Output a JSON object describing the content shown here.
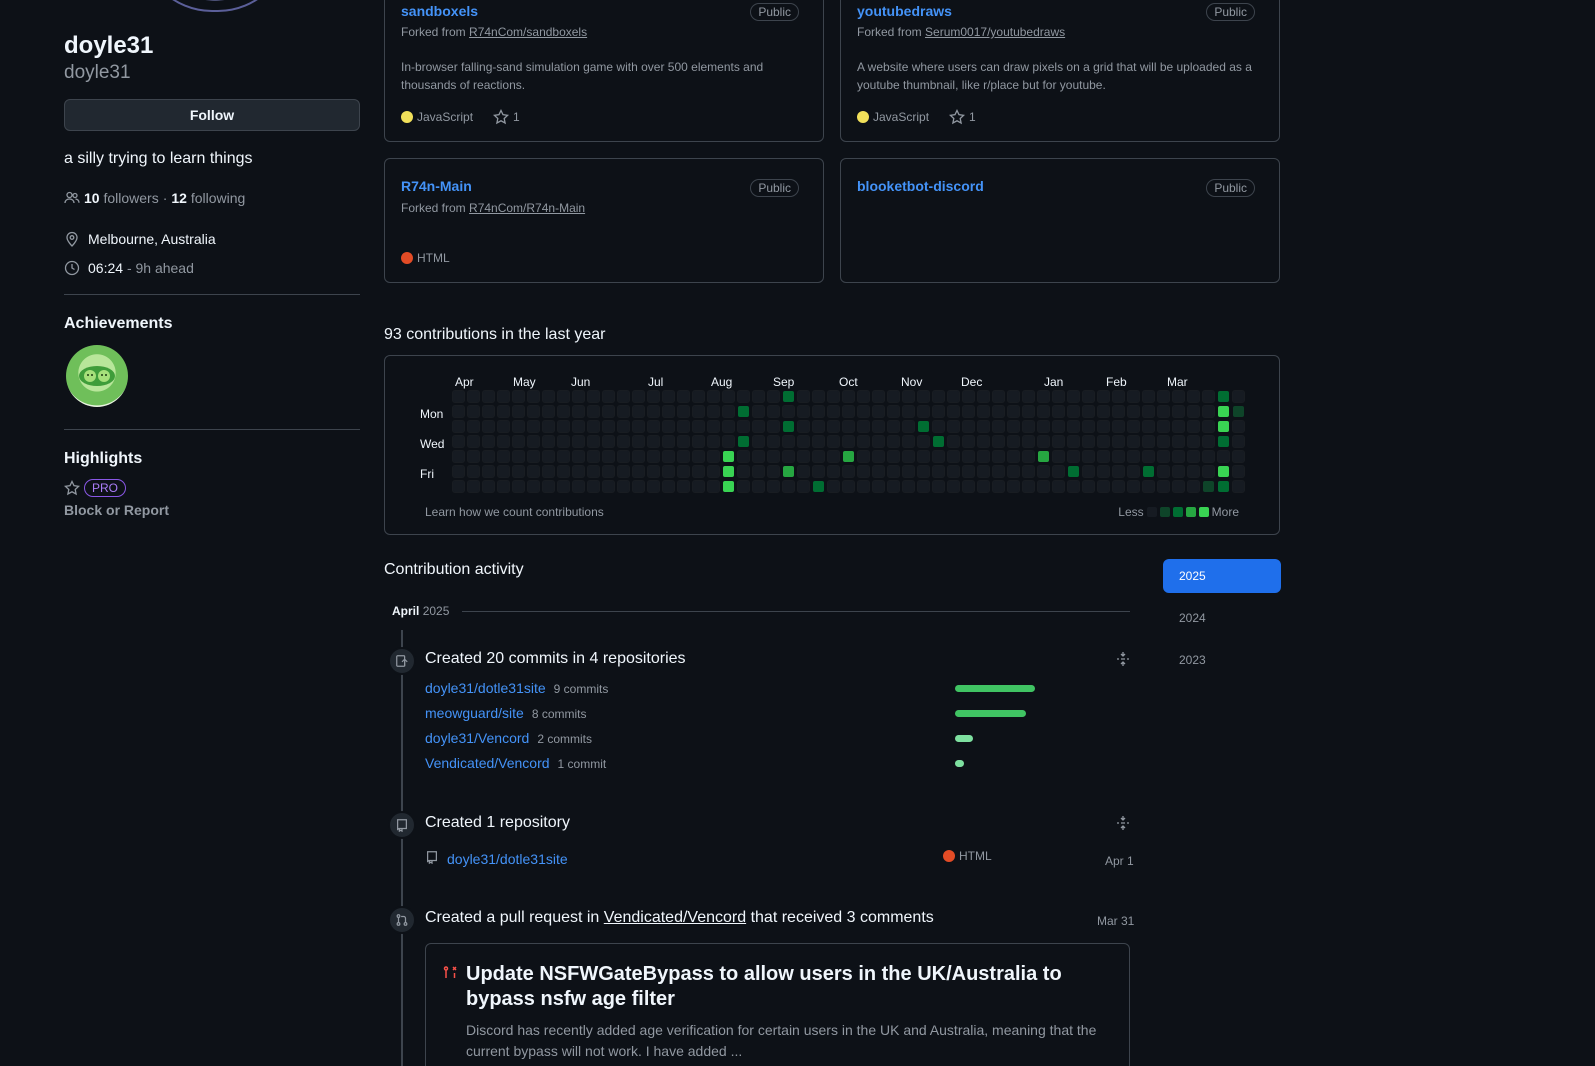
{
  "profile": {
    "name": "doyle31",
    "login": "doyle31",
    "follow_label": "Follow",
    "bio": "a silly trying to learn things",
    "followers_count": "10",
    "followers_label": "followers",
    "separator": "·",
    "following_count": "12",
    "following_label": "following",
    "location": "Melbourne, Australia",
    "time": "06:24",
    "time_note": "- 9h ahead",
    "achievements_heading": "Achievements",
    "highlights_heading": "Highlights",
    "pro_label": "PRO",
    "block_label": "Block or Report"
  },
  "repos": [
    {
      "name": "sandboxels",
      "visibility": "Public",
      "forked_prefix": "Forked from",
      "forked_from": "R74nCom/sandboxels",
      "description": "In-browser falling-sand simulation game with over 500 elements and thousands of reactions.",
      "language": "JavaScript",
      "lang_color": "#f1e05a",
      "stars": "1"
    },
    {
      "name": "youtubedraws",
      "visibility": "Public",
      "forked_prefix": "Forked from",
      "forked_from": "Serum0017/youtubedraws",
      "description": "A website where users can draw pixels on a grid that will be uploaded as a youtube thumbnail, like r/place but for youtube.",
      "language": "JavaScript",
      "lang_color": "#f1e05a",
      "stars": "1"
    },
    {
      "name": "R74n-Main",
      "visibility": "Public",
      "forked_prefix": "Forked from",
      "forked_from": "R74nCom/R74n-Main",
      "language": "HTML",
      "lang_color": "#e34c26"
    },
    {
      "name": "blooketbot-discord",
      "visibility": "Public"
    }
  ],
  "contributions": {
    "title": "93 contributions in the last year",
    "months": [
      "Apr",
      "May",
      "Jun",
      "Jul",
      "Aug",
      "Sep",
      "Oct",
      "Nov",
      "Dec",
      "Jan",
      "Feb",
      "Mar"
    ],
    "days": [
      "Mon",
      "Wed",
      "Fri"
    ],
    "learn_label": "Learn how we count contributions",
    "less_label": "Less",
    "more_label": "More",
    "colors": [
      "#161b22",
      "#0e4429",
      "#006d32",
      "#26a641",
      "#39d353"
    ]
  },
  "activity": {
    "heading": "Contribution activity",
    "years": [
      "2025",
      "2024",
      "2023"
    ],
    "month_name": "April",
    "month_year": "2025",
    "commits_title": "Created 20 commits in 4 repositories",
    "commit_repos": [
      {
        "name": "doyle31/dotle31site",
        "count": "9 commits",
        "value": 9
      },
      {
        "name": "meowguard/site",
        "count": "8 commits",
        "value": 8
      },
      {
        "name": "doyle31/Vencord",
        "count": "2 commits",
        "value": 2
      },
      {
        "name": "Vendicated/Vencord",
        "count": "1 commit",
        "value": 1
      }
    ],
    "repo_title": "Created 1 repository",
    "new_repo": {
      "name": "doyle31/dotle31site",
      "language": "HTML",
      "lang_color": "#e34c26",
      "date": "Apr 1"
    },
    "pr_prefix": "Created a pull request in",
    "pr_repo": "Vendicated/Vencord",
    "pr_suffix": "that received 3 comments",
    "pr_date": "Mar 31",
    "pr_title": "Update NSFWGateBypass to allow users in the UK/Australia to bypass nsfw age filter",
    "pr_body": "Discord has recently added age verification for certain users in the UK and Australia, meaning that the current bypass will not work. I have added ..."
  }
}
